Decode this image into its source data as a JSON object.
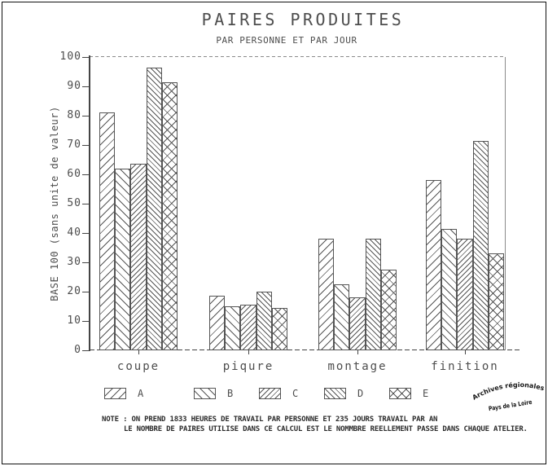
{
  "chart_data": {
    "type": "bar",
    "title": "PAIRES PRODUITES",
    "subtitle": "PAR PERSONNE ET PAR JOUR",
    "ylabel": "BASE 100 (sans unite  de valeur)",
    "ylim": [
      0,
      100
    ],
    "yticks": [
      0,
      10,
      20,
      30,
      40,
      50,
      60,
      70,
      80,
      90,
      100
    ],
    "grid": false,
    "legend_position": "bottom",
    "categories": [
      "coupe",
      "piqure",
      "montage",
      "finition"
    ],
    "series": [
      {
        "name": "A",
        "pattern": "diagonal-up-wide",
        "values": [
          81,
          18.5,
          38,
          58
        ]
      },
      {
        "name": "B",
        "pattern": "diagonal-down-wide",
        "values": [
          62,
          15,
          22.5,
          41.5
        ]
      },
      {
        "name": "C",
        "pattern": "diagonal-up-dense",
        "values": [
          63.5,
          15.5,
          18,
          38
        ]
      },
      {
        "name": "D",
        "pattern": "diagonal-down-dense",
        "values": [
          96.5,
          20,
          38,
          71.5
        ]
      },
      {
        "name": "E",
        "pattern": "crosshatch",
        "values": [
          91.5,
          14.5,
          27.5,
          33
        ]
      }
    ]
  },
  "note": {
    "line1": "NOTE : ON PREND 1833 HEURES DE TRAVAIL PAR PERSONNE ET 235 JOURS TRAVAIL PAR AN",
    "line2": "LE NOMBRE DE PAIRES UTILISE DANS CE CALCUL EST LE NOMMBRE REELLEMENT PASSE DANS CHAQUE ATELIER."
  },
  "stamp": {
    "line1": "Archives régionales",
    "line2": "Pays de la Loire"
  },
  "colors": {
    "ink": "#444444",
    "hatch_ink": "#555555",
    "stamp_ink": "#151515",
    "background": "#ffffff"
  }
}
